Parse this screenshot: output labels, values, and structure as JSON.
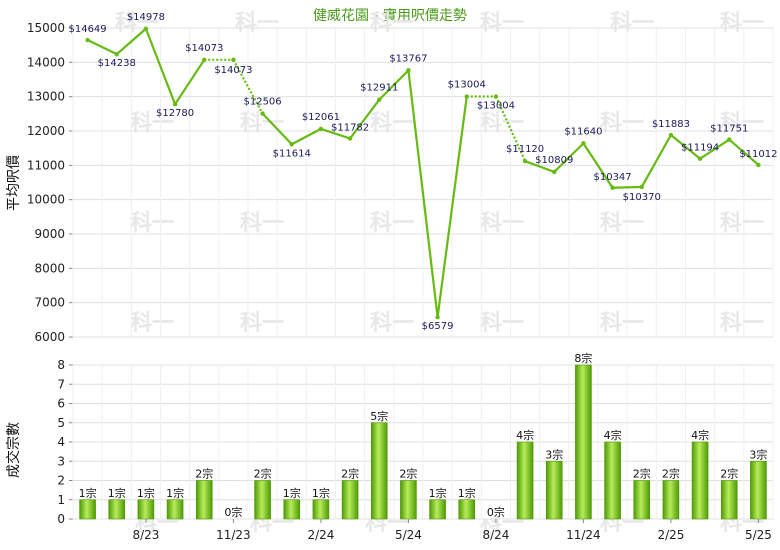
{
  "chart_data": [
    {
      "type": "line",
      "title": "健威花園 - 實用呎價走勢",
      "ylabel": "平均呎價",
      "ylim": [
        6000,
        15000
      ],
      "yticks": [
        6000,
        7000,
        8000,
        9000,
        10000,
        11000,
        12000,
        13000,
        14000,
        15000
      ],
      "grid": true,
      "color": "#66bb11",
      "points": [
        {
          "x": 0,
          "value": 14649,
          "label": "$14649"
        },
        {
          "x": 1,
          "value": 14238,
          "label": "$14238"
        },
        {
          "x": 2,
          "value": 14978,
          "label": "$14978"
        },
        {
          "x": 3,
          "value": 12780,
          "label": "$12780"
        },
        {
          "x": 4,
          "value": 14073,
          "label": "$14073"
        },
        {
          "x": 5,
          "value": 14073,
          "label": "$14073",
          "interpolated": true
        },
        {
          "x": 6,
          "value": 12506,
          "label": "$12506"
        },
        {
          "x": 7,
          "value": 11614,
          "label": "$11614"
        },
        {
          "x": 8,
          "value": 12061,
          "label": "$12061"
        },
        {
          "x": 9,
          "value": 11782,
          "label": "$11782"
        },
        {
          "x": 10,
          "value": 12911,
          "label": "$12911"
        },
        {
          "x": 11,
          "value": 13767,
          "label": "$13767"
        },
        {
          "x": 12,
          "value": 6579,
          "label": "$6579"
        },
        {
          "x": 13,
          "value": 13004,
          "label": "$13004"
        },
        {
          "x": 14,
          "value": 13004,
          "label": "$13004",
          "interpolated": true
        },
        {
          "x": 15,
          "value": 11120,
          "label": "$11120"
        },
        {
          "x": 16,
          "value": 10809,
          "label": "$10809"
        },
        {
          "x": 17,
          "value": 11640,
          "label": "$11640"
        },
        {
          "x": 18,
          "value": 10347,
          "label": "$10347"
        },
        {
          "x": 19,
          "value": 10370,
          "label": "$10370"
        },
        {
          "x": 20,
          "value": 11883,
          "label": "$11883"
        },
        {
          "x": 21,
          "value": 11194,
          "label": "$11194"
        },
        {
          "x": 22,
          "value": 11751,
          "label": "$11751"
        },
        {
          "x": 23,
          "value": 11012,
          "label": "$11012"
        }
      ]
    },
    {
      "type": "bar",
      "ylabel": "成交宗數",
      "ylim": [
        0,
        8
      ],
      "yticks": [
        0,
        1,
        2,
        3,
        4,
        5,
        6,
        7,
        8
      ],
      "grid": true,
      "x_tick_labels": [
        {
          "x": 2.5,
          "label": "8/23"
        },
        {
          "x": 5.5,
          "label": "11/23"
        },
        {
          "x": 8.5,
          "label": "2/24"
        },
        {
          "x": 11.5,
          "label": "5/24"
        },
        {
          "x": 14.5,
          "label": "8/24"
        },
        {
          "x": 17.5,
          "label": "11/24"
        },
        {
          "x": 20.5,
          "label": "2/25"
        },
        {
          "x": 23.5,
          "label": "5/25"
        }
      ],
      "values": [
        1,
        1,
        1,
        1,
        2,
        0,
        2,
        1,
        1,
        2,
        5,
        2,
        1,
        1,
        0,
        4,
        3,
        8,
        4,
        2,
        2,
        4,
        2,
        3
      ],
      "bar_labels": [
        "1宗",
        "1宗",
        "1宗",
        "1宗",
        "2宗",
        "0宗",
        "2宗",
        "1宗",
        "1宗",
        "2宗",
        "5宗",
        "2宗",
        "1宗",
        "1宗",
        "0宗",
        "4宗",
        "3宗",
        "8宗",
        "4宗",
        "2宗",
        "2宗",
        "4宗",
        "2宗",
        "3宗"
      ],
      "color": "#66bb11"
    }
  ],
  "watermark": "科一"
}
